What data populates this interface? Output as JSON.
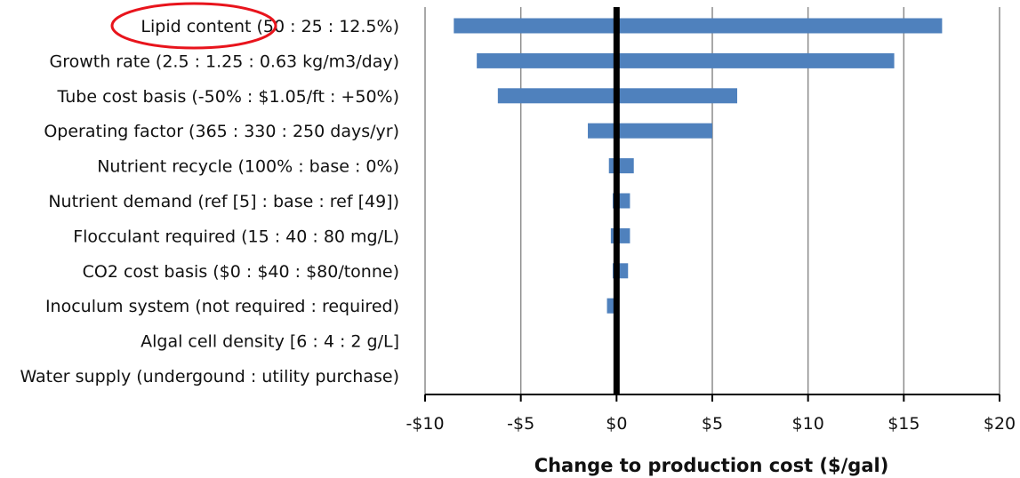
{
  "chart_data": {
    "type": "bar",
    "orientation": "horizontal",
    "xlabel": "Change to production cost ($/gal)",
    "xlim": [
      -10,
      20
    ],
    "xticks": [
      -10,
      -5,
      0,
      5,
      10,
      15,
      20
    ],
    "xtick_labels": [
      "-$10",
      "-$5",
      "$0",
      "$5",
      "$10",
      "$15",
      "$20"
    ],
    "grid": "vertical",
    "bar_color": "#4f81bd",
    "categories": [
      "Lipid content (50 : 25 : 12.5%)",
      "Growth rate (2.5 : 1.25 : 0.63 kg/m3/day)",
      "Tube cost basis (-50% : $1.05/ft : +50%)",
      "Operating factor (365 : 330 : 250 days/yr)",
      "Nutrient recycle (100% : base : 0%)",
      "Nutrient demand (ref [5] : base : ref [49])",
      "Flocculant required (15 : 40 : 80 mg/L)",
      "CO2 cost basis ($0 : $40 : $80/tonne)",
      "Inoculum system (not required : required)",
      "Algal cell density [6 : 4 : 2 g/L]",
      "Water supply (undergound : utility purchase)"
    ],
    "series": [
      {
        "values": [
          [
            -8.5,
            17.0
          ],
          [
            -7.3,
            14.5
          ],
          [
            -6.2,
            6.3
          ],
          [
            -1.5,
            5.0
          ],
          [
            -0.4,
            0.9
          ],
          [
            -0.2,
            0.7
          ],
          [
            -0.3,
            0.7
          ],
          [
            -0.2,
            0.6
          ],
          [
            -0.5,
            0.0
          ],
          [
            0.0,
            0.0
          ],
          [
            0.0,
            0.0
          ]
        ]
      }
    ],
    "annotation": {
      "type": "ellipse",
      "target": "Lipid content (50 : 25 : 12.5%)",
      "color": "#e8141c"
    }
  }
}
